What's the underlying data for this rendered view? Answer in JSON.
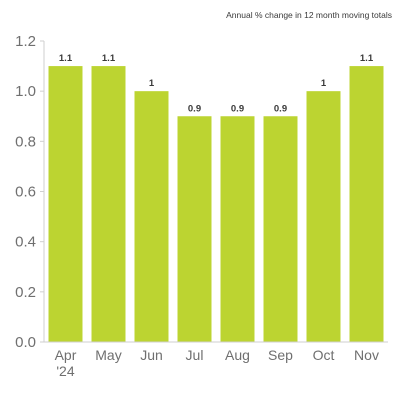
{
  "chart_data": {
    "type": "bar",
    "subtitle": "Annual % change in 12 month moving totals",
    "categories": [
      "Apr\n'24",
      "May",
      "Jun",
      "Jul",
      "Aug",
      "Sep",
      "Oct",
      "Nov"
    ],
    "values": [
      1.1,
      1.1,
      1.0,
      0.9,
      0.9,
      0.9,
      1.0,
      1.1
    ],
    "data_labels": [
      "1.1",
      "1.1",
      "1",
      "0.9",
      "0.9",
      "0.9",
      "1",
      "1.1"
    ],
    "yticks": [
      "0.0",
      "0.2",
      "0.4",
      "0.6",
      "0.8",
      "1.0",
      "1.2"
    ],
    "ylim": [
      0,
      1.2
    ],
    "grid": false,
    "bar_color": "#bcd431",
    "axis_color": "#cfcfcf"
  }
}
